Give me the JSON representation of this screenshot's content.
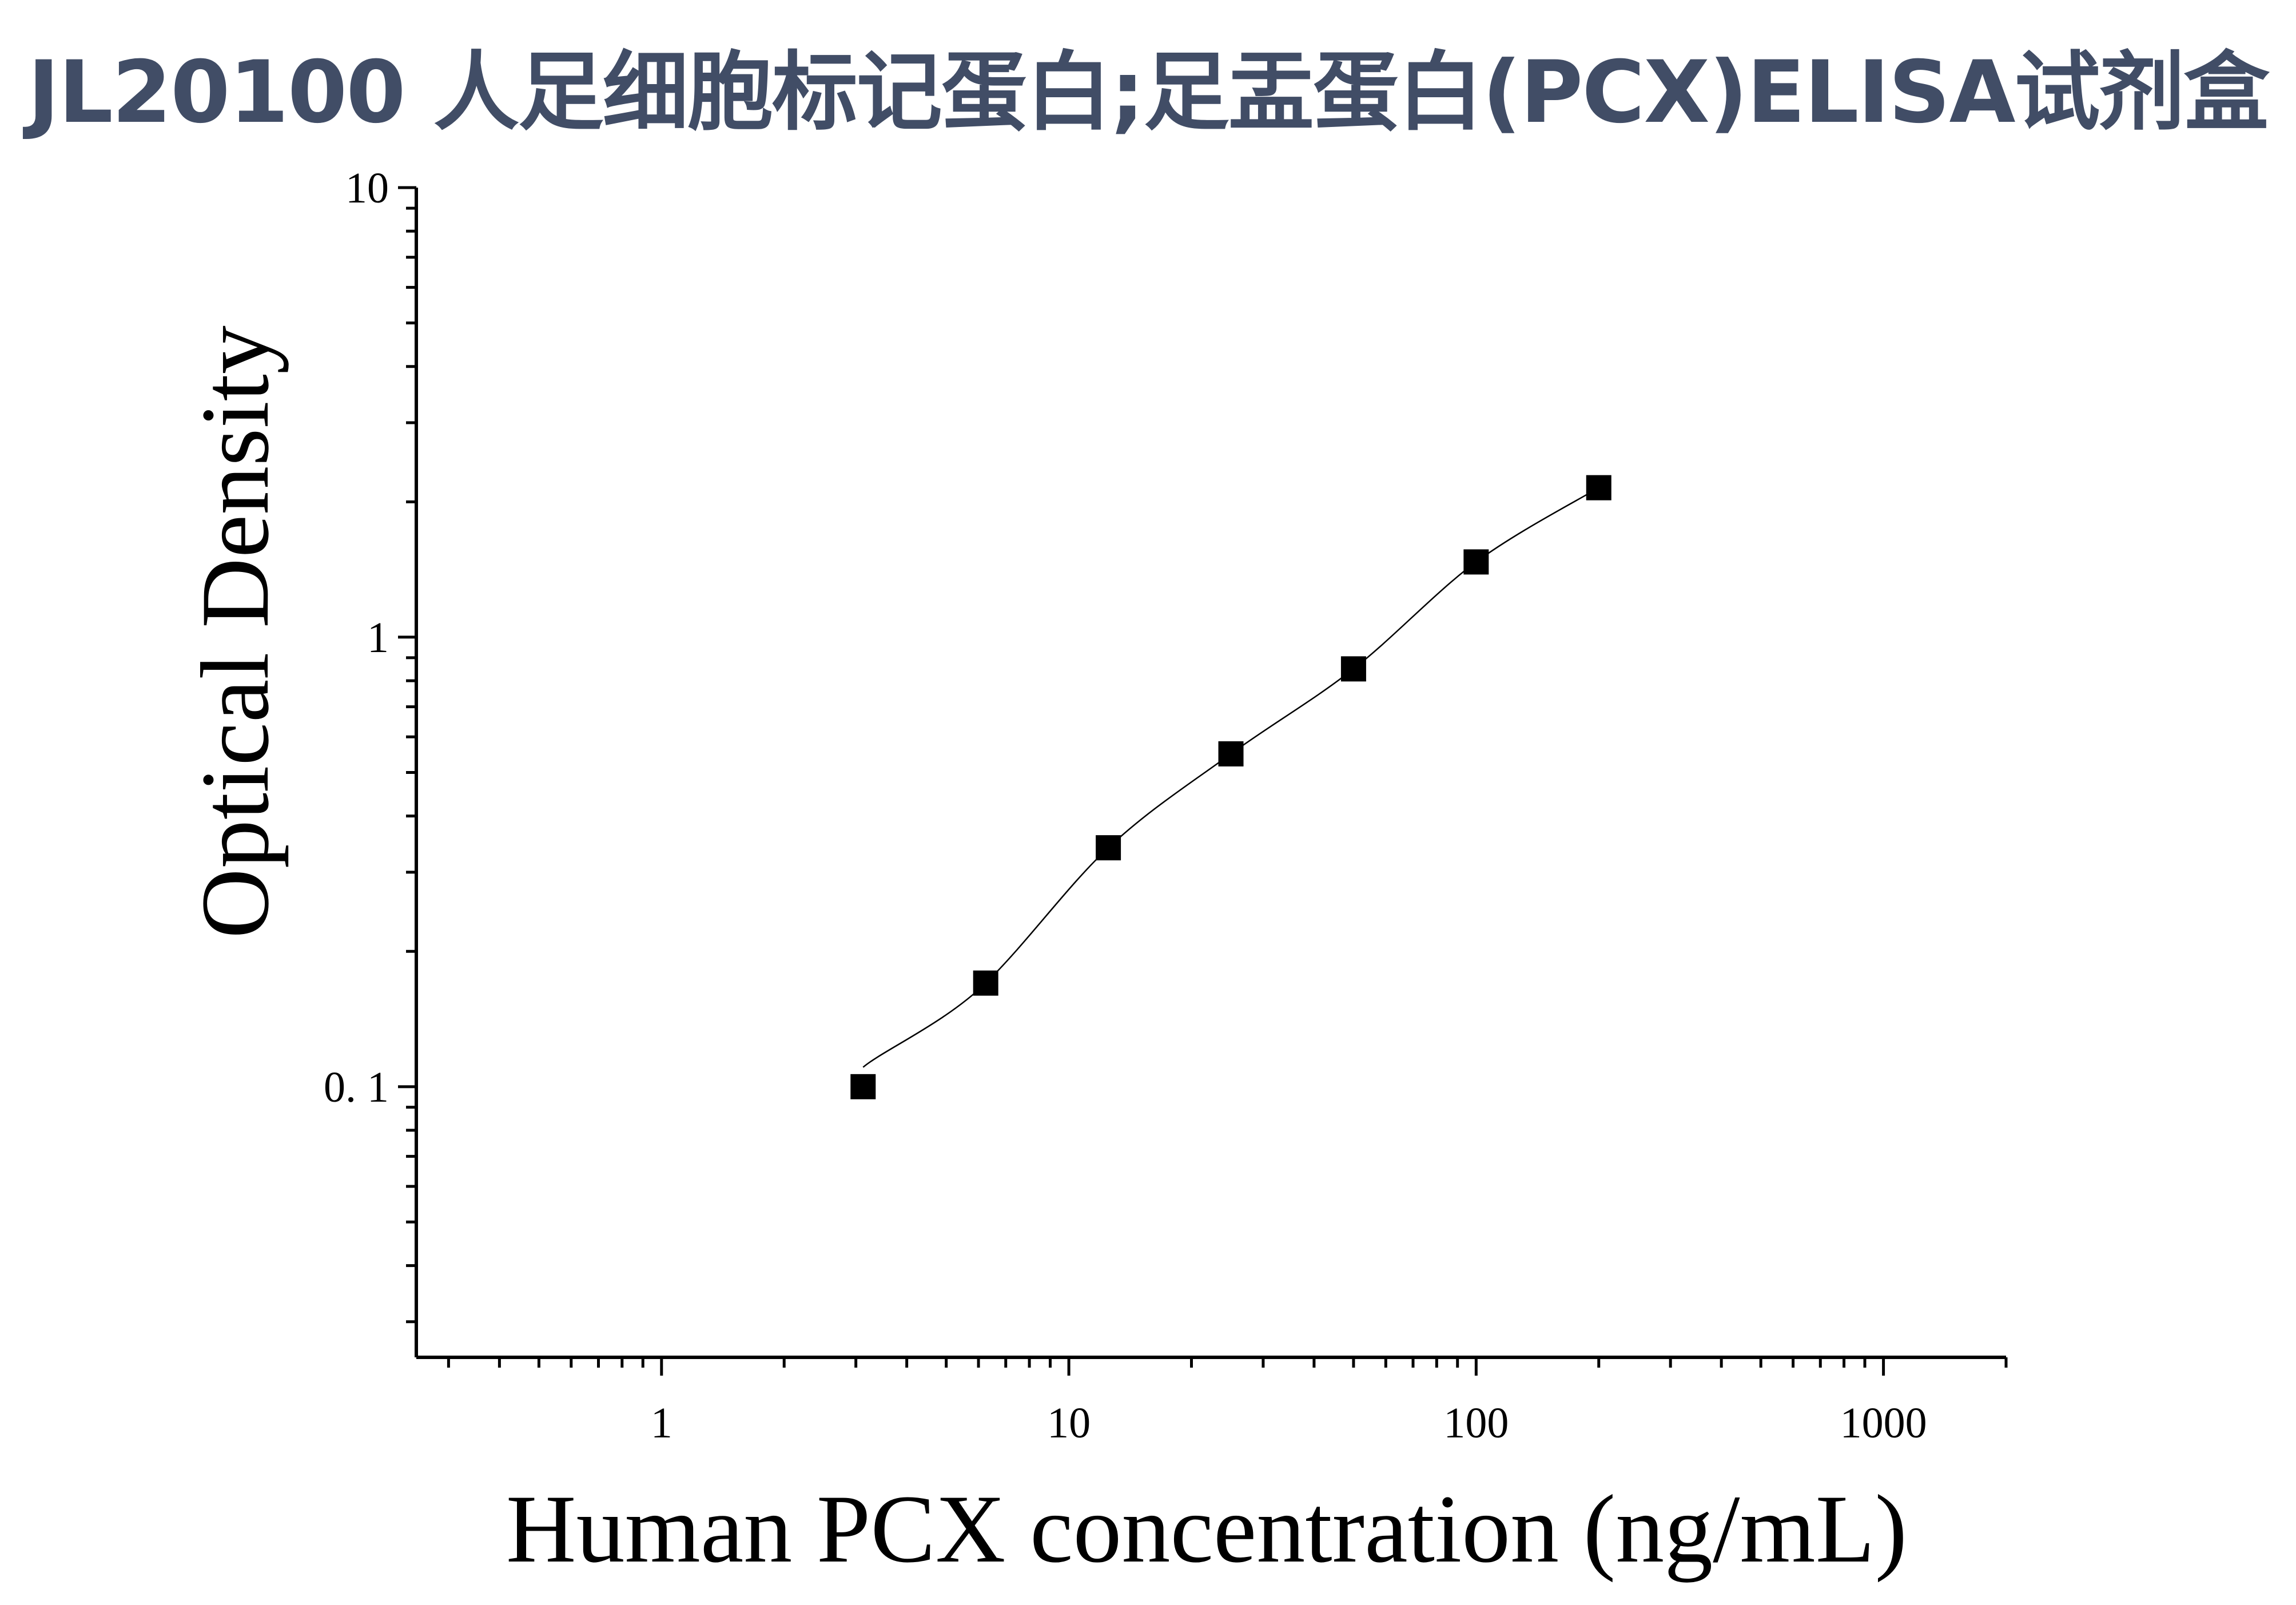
{
  "title": "JL20100 人足细胞标记蛋白;足盂蛋白(PCX)ELISA试剂盒",
  "chart_data": {
    "type": "scatter",
    "title": "JL20100 人足细胞标记蛋白;足盂蛋白(PCX)ELISA试剂盒",
    "xlabel": "Human PCX concentration (ng/mL)",
    "ylabel": "Optical Density",
    "xscale": "log",
    "yscale": "log",
    "xlim": [
      0.25,
      2000
    ],
    "ylim": [
      0.025,
      10
    ],
    "xticks": [
      1,
      10,
      100,
      1000
    ],
    "xtick_labels": [
      "1",
      "10",
      "100",
      "1000"
    ],
    "yticks": [
      0.1,
      1,
      10
    ],
    "ytick_labels": [
      "0. 1",
      "1",
      "10"
    ],
    "grid": false,
    "marker": "square",
    "series": [
      {
        "x": [
          3.125,
          6.25,
          12.5,
          25,
          50,
          100,
          200
        ],
        "y": [
          0.1,
          0.17,
          0.34,
          0.55,
          0.85,
          1.47,
          2.15
        ],
        "fit_line": true
      }
    ],
    "color": "#000000"
  }
}
